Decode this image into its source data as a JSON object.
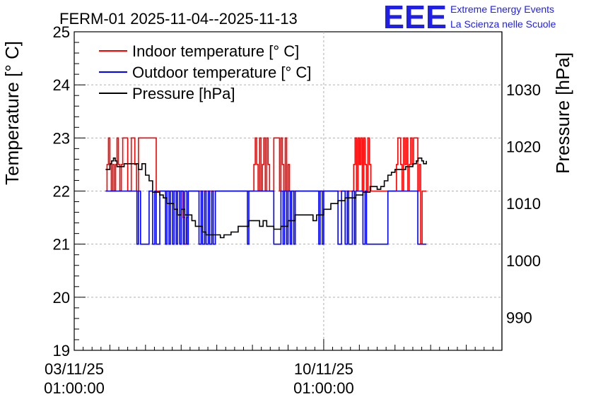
{
  "chart_data": {
    "type": "line",
    "title": "FERM-01 2025-11-04--2025-11-13",
    "ylabel": "Temperature [° C]",
    "y2label": "Pressure [hPa]",
    "ylim": [
      19,
      25
    ],
    "y2lim": [
      984.2,
      1040.2
    ],
    "yticks": [
      19,
      20,
      21,
      22,
      23,
      24,
      25
    ],
    "y2ticks": [
      990,
      1000,
      1010,
      1020,
      1030
    ],
    "xlim_days": [
      0,
      12.0
    ],
    "xticks": [
      {
        "day": 0,
        "date": "03/11/25",
        "time": "01:00:00"
      },
      {
        "day": 7,
        "date": "10/11/25",
        "time": "01:00:00"
      }
    ],
    "legend": [
      {
        "label": "Indoor temperature [° C]",
        "color": "#ff0000"
      },
      {
        "label": "Outdoor temperature [° C]",
        "color": "#0000ff"
      },
      {
        "label": "Pressure [hPa]",
        "color": "#000000"
      }
    ],
    "series": [
      {
        "name": "Indoor temperature [° C]",
        "axis": "left",
        "color": "#ff0000",
        "x": [
          0.88,
          0.92,
          0.96,
          1.0,
          1.04,
          1.08,
          1.12,
          1.16,
          1.2,
          1.24,
          1.28,
          1.32,
          1.36,
          1.4,
          1.45,
          1.5,
          1.55,
          1.6,
          1.65,
          1.7,
          1.75,
          1.8,
          1.85,
          1.9,
          2.0,
          2.1,
          2.2,
          2.3,
          2.4,
          2.5,
          2.6,
          2.7,
          2.8,
          2.9,
          3.0,
          3.05,
          3.1,
          3.15,
          3.2,
          3.3,
          3.4,
          3.5,
          3.6,
          3.7,
          3.8,
          3.9,
          4.0,
          4.1,
          4.2,
          4.3,
          4.4,
          4.5,
          4.6,
          4.7,
          4.8,
          4.9,
          5.0,
          5.04,
          5.08,
          5.12,
          5.16,
          5.2,
          5.24,
          5.28,
          5.32,
          5.36,
          5.4,
          5.44,
          5.48,
          5.52,
          5.56,
          5.6,
          5.64,
          5.68,
          5.72,
          5.76,
          5.8,
          5.84,
          5.88,
          5.92,
          5.96,
          6.0,
          6.04,
          6.08,
          6.12,
          6.16,
          6.2,
          6.25,
          6.3,
          6.35,
          6.4,
          6.5,
          6.6,
          6.7,
          6.8,
          6.9,
          7.0,
          7.1,
          7.2,
          7.3,
          7.4,
          7.5,
          7.6,
          7.7,
          7.8,
          7.84,
          7.88,
          7.92,
          7.96,
          8.0,
          8.04,
          8.08,
          8.12,
          8.16,
          8.2,
          8.24,
          8.28,
          8.32,
          8.4,
          8.5,
          8.6,
          8.7,
          8.8,
          8.9,
          9.0,
          9.04,
          9.08,
          9.12,
          9.16,
          9.2,
          9.24,
          9.28,
          9.32,
          9.36,
          9.4,
          9.44,
          9.48,
          9.52,
          9.56,
          9.6,
          9.64,
          9.68,
          9.72,
          9.76,
          9.8,
          9.84,
          9.88
        ],
        "y": [
          22.0,
          22.5,
          23.0,
          22.5,
          22.0,
          22.5,
          22.0,
          22.5,
          23.0,
          22.5,
          22.0,
          22.5,
          23.0,
          23.0,
          23.0,
          22.0,
          22.0,
          23.0,
          23.0,
          22.5,
          22.0,
          23.0,
          23.0,
          23.0,
          23.0,
          23.0,
          23.0,
          22.0,
          22.0,
          22.0,
          22.0,
          22.0,
          22.0,
          22.0,
          22.0,
          21.5,
          21.0,
          21.5,
          22.0,
          22.0,
          22.0,
          22.0,
          22.0,
          22.0,
          22.0,
          22.0,
          22.0,
          22.0,
          22.0,
          22.0,
          22.0,
          22.0,
          22.0,
          22.0,
          22.0,
          22.0,
          22.0,
          22.5,
          23.0,
          22.5,
          22.0,
          23.0,
          22.0,
          22.5,
          23.0,
          22.0,
          23.0,
          22.5,
          22.0,
          22.0,
          22.0,
          23.0,
          23.0,
          23.0,
          23.0,
          22.0,
          23.0,
          22.5,
          22.0,
          23.0,
          22.0,
          22.5,
          22.0,
          22.0,
          22.0,
          22.0,
          22.0,
          22.0,
          22.0,
          22.0,
          22.0,
          22.0,
          22.0,
          22.0,
          22.0,
          22.0,
          22.0,
          22.0,
          22.0,
          22.0,
          22.0,
          22.0,
          22.0,
          22.0,
          22.0,
          22.5,
          23.0,
          22.0,
          23.0,
          22.5,
          23.0,
          22.0,
          23.0,
          22.5,
          22.0,
          23.0,
          22.5,
          22.0,
          22.0,
          22.0,
          22.0,
          22.0,
          22.0,
          22.0,
          22.0,
          22.5,
          23.0,
          23.0,
          22.5,
          22.0,
          23.0,
          22.5,
          23.0,
          22.0,
          22.5,
          23.0,
          22.5,
          23.0,
          23.0,
          23.0,
          22.0,
          22.5,
          21.0,
          22.0,
          22.0,
          22.0,
          22.0
        ]
      },
      {
        "name": "Outdoor temperature [° C]",
        "axis": "left",
        "color": "#0000ff",
        "x": [
          0.88,
          1.0,
          1.2,
          1.4,
          1.6,
          1.7,
          1.76,
          1.8,
          1.86,
          1.9,
          1.96,
          2.0,
          2.1,
          2.2,
          2.26,
          2.3,
          2.4,
          2.5,
          2.56,
          2.6,
          2.66,
          2.7,
          2.76,
          2.8,
          2.86,
          2.9,
          2.96,
          3.0,
          3.06,
          3.1,
          3.16,
          3.2,
          3.3,
          3.4,
          3.5,
          3.56,
          3.6,
          3.66,
          3.7,
          3.76,
          3.8,
          3.86,
          3.9,
          3.96,
          4.0,
          4.1,
          4.2,
          4.3,
          4.4,
          4.5,
          4.6,
          4.7,
          4.8,
          4.86,
          4.9,
          5.0,
          5.1,
          5.2,
          5.3,
          5.4,
          5.5,
          5.6,
          5.7,
          5.8,
          5.86,
          5.9,
          5.96,
          6.0,
          6.06,
          6.1,
          6.16,
          6.2,
          6.3,
          6.4,
          6.5,
          6.6,
          6.7,
          6.8,
          6.86,
          6.9,
          6.96,
          7.0,
          7.1,
          7.2,
          7.3,
          7.4,
          7.5,
          7.6,
          7.66,
          7.7,
          7.8,
          7.86,
          7.9,
          8.0,
          8.1,
          8.16,
          8.2,
          8.3,
          8.4,
          8.5,
          8.6,
          8.7,
          8.8,
          8.9,
          9.0,
          9.1,
          9.2,
          9.3,
          9.4,
          9.5,
          9.6,
          9.64,
          9.7,
          9.8,
          9.88
        ],
        "y": [
          22.0,
          22.0,
          22.0,
          22.0,
          22.0,
          22.0,
          21.0,
          22.0,
          21.0,
          21.0,
          21.0,
          21.0,
          22.0,
          21.0,
          22.0,
          21.0,
          22.0,
          22.0,
          21.0,
          22.0,
          21.0,
          22.0,
          21.0,
          22.0,
          21.0,
          22.0,
          21.0,
          22.0,
          21.0,
          22.0,
          21.0,
          22.0,
          22.0,
          22.0,
          21.0,
          22.0,
          21.0,
          22.0,
          21.0,
          22.0,
          21.0,
          22.0,
          21.0,
          22.0,
          22.0,
          22.0,
          22.0,
          22.0,
          22.0,
          22.0,
          22.0,
          22.0,
          22.0,
          21.0,
          22.0,
          22.0,
          22.0,
          22.0,
          22.0,
          22.0,
          22.0,
          21.0,
          21.0,
          22.0,
          21.0,
          22.0,
          21.0,
          22.0,
          21.0,
          22.0,
          21.0,
          22.0,
          22.0,
          22.0,
          22.0,
          22.0,
          22.0,
          22.0,
          21.0,
          22.0,
          21.0,
          22.0,
          22.0,
          22.0,
          22.0,
          21.0,
          22.0,
          21.0,
          22.0,
          21.0,
          22.0,
          21.0,
          22.0,
          22.0,
          21.0,
          22.0,
          21.0,
          21.0,
          21.0,
          21.0,
          21.0,
          21.0,
          22.0,
          22.0,
          22.0,
          22.0,
          22.0,
          22.0,
          22.0,
          22.0,
          22.0,
          21.0,
          21.0,
          21.0,
          21.0
        ]
      },
      {
        "name": "Pressure [hPa]",
        "axis": "right",
        "color": "#000000",
        "x": [
          0.88,
          0.95,
          1.0,
          1.05,
          1.1,
          1.15,
          1.2,
          1.25,
          1.3,
          1.4,
          1.5,
          1.6,
          1.7,
          1.8,
          1.9,
          2.0,
          2.1,
          2.2,
          2.3,
          2.4,
          2.5,
          2.6,
          2.7,
          2.8,
          2.9,
          3.0,
          3.1,
          3.2,
          3.3,
          3.4,
          3.5,
          3.6,
          3.7,
          3.8,
          3.9,
          4.0,
          4.1,
          4.2,
          4.3,
          4.4,
          4.5,
          4.6,
          4.7,
          4.8,
          4.9,
          5.0,
          5.1,
          5.2,
          5.3,
          5.4,
          5.5,
          5.6,
          5.7,
          5.8,
          5.9,
          6.0,
          6.1,
          6.2,
          6.3,
          6.4,
          6.5,
          6.6,
          6.7,
          6.8,
          6.9,
          7.0,
          7.1,
          7.2,
          7.3,
          7.4,
          7.5,
          7.6,
          7.7,
          7.8,
          7.9,
          8.0,
          8.1,
          8.2,
          8.3,
          8.4,
          8.5,
          8.6,
          8.7,
          8.8,
          8.9,
          9.0,
          9.1,
          9.2,
          9.3,
          9.4,
          9.5,
          9.6,
          9.65,
          9.7,
          9.75,
          9.8,
          9.85,
          9.88
        ],
        "y": [
          1016.0,
          1016.0,
          1017.0,
          1017.5,
          1018.0,
          1017.5,
          1016.5,
          1016.5,
          1016.5,
          1017.0,
          1017.0,
          1017.0,
          1017.0,
          1016.0,
          1017.0,
          1015.0,
          1014.0,
          1012.0,
          1012.0,
          1011.5,
          1011.0,
          1010.0,
          1010.0,
          1009.0,
          1008.0,
          1009.0,
          1008.0,
          1008.0,
          1007.0,
          1006.0,
          1006.0,
          1005.0,
          1004.5,
          1004.5,
          1004.5,
          1004.5,
          1004.0,
          1004.5,
          1004.5,
          1005.0,
          1005.0,
          1006.0,
          1006.0,
          1006.0,
          1007.0,
          1007.0,
          1007.0,
          1006.0,
          1007.0,
          1006.0,
          1006.0,
          1005.5,
          1005.5,
          1006.0,
          1006.0,
          1007.0,
          1007.0,
          1008.0,
          1008.0,
          1008.0,
          1008.0,
          1008.0,
          1007.0,
          1008.0,
          1008.0,
          1009.0,
          1009.0,
          1010.0,
          1010.0,
          1010.5,
          1010.5,
          1011.0,
          1011.0,
          1011.0,
          1011.5,
          1011.5,
          1012.0,
          1012.0,
          1013.0,
          1013.0,
          1012.5,
          1013.0,
          1014.0,
          1015.0,
          1015.5,
          1016.0,
          1016.0,
          1016.0,
          1016.5,
          1016.5,
          1017.0,
          1017.5,
          1018.0,
          1018.0,
          1017.5,
          1017.0,
          1017.0,
          1017.5
        ]
      }
    ]
  },
  "logo": {
    "letters": "EEE",
    "line1": "Extreme Energy Events",
    "line2": "La Scienza nelle Scuole"
  }
}
